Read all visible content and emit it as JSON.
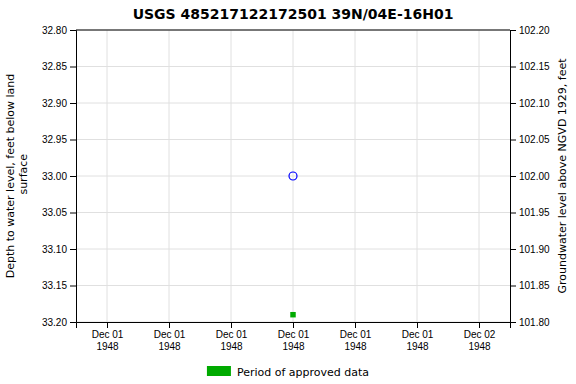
{
  "chart_data": {
    "type": "scatter",
    "title": "USGS 485217122172501 39N/04E-16H01",
    "y_label": "Depth to water level, feet below land\n surface",
    "y2_label": "Groundwater level above NGVD 1929, feet",
    "categories": [
      "Dec 01\n1948",
      "Dec 01\n1948",
      "Dec 01\n1948",
      "Dec 01\n1948",
      "Dec 01\n1948",
      "Dec 01\n1948",
      "Dec 02\n1948"
    ],
    "series": [
      {
        "color": "blue",
        "marker": "circle-open",
        "values": [
          null,
          null,
          null,
          33.0,
          null,
          null,
          null
        ]
      },
      {
        "name": "Period of approved data",
        "color": "#00aa00",
        "marker": "square",
        "values": [
          null,
          null,
          null,
          33.19,
          null,
          null,
          null
        ]
      }
    ],
    "ylim": [
      33.2,
      32.8
    ],
    "yticks": [
      {
        "value": 32.8,
        "label": "32.80"
      },
      {
        "value": 32.85,
        "label": "32.85"
      },
      {
        "value": 32.9,
        "label": "32.90"
      },
      {
        "value": 32.95,
        "label": "32.95"
      },
      {
        "value": 33.0,
        "label": "33.00"
      },
      {
        "value": 33.05,
        "label": "33.05"
      },
      {
        "value": 33.1,
        "label": "33.10"
      },
      {
        "value": 33.15,
        "label": "33.15"
      },
      {
        "value": 33.2,
        "label": "33.20"
      }
    ],
    "y2lim": [
      101.8,
      102.2
    ],
    "y2ticks": [
      {
        "value": 102.2,
        "label": "102.20"
      },
      {
        "value": 102.15,
        "label": "102.15"
      },
      {
        "value": 102.1,
        "label": "102.10"
      },
      {
        "value": 102.05,
        "label": "102.05"
      },
      {
        "value": 102.0,
        "label": "102.00"
      },
      {
        "value": 101.95,
        "label": "101.95"
      },
      {
        "value": 101.9,
        "label": "101.90"
      },
      {
        "value": 101.85,
        "label": "101.85"
      },
      {
        "value": 101.8,
        "label": "101.80"
      }
    ],
    "grid": true,
    "legend": "bottom"
  }
}
